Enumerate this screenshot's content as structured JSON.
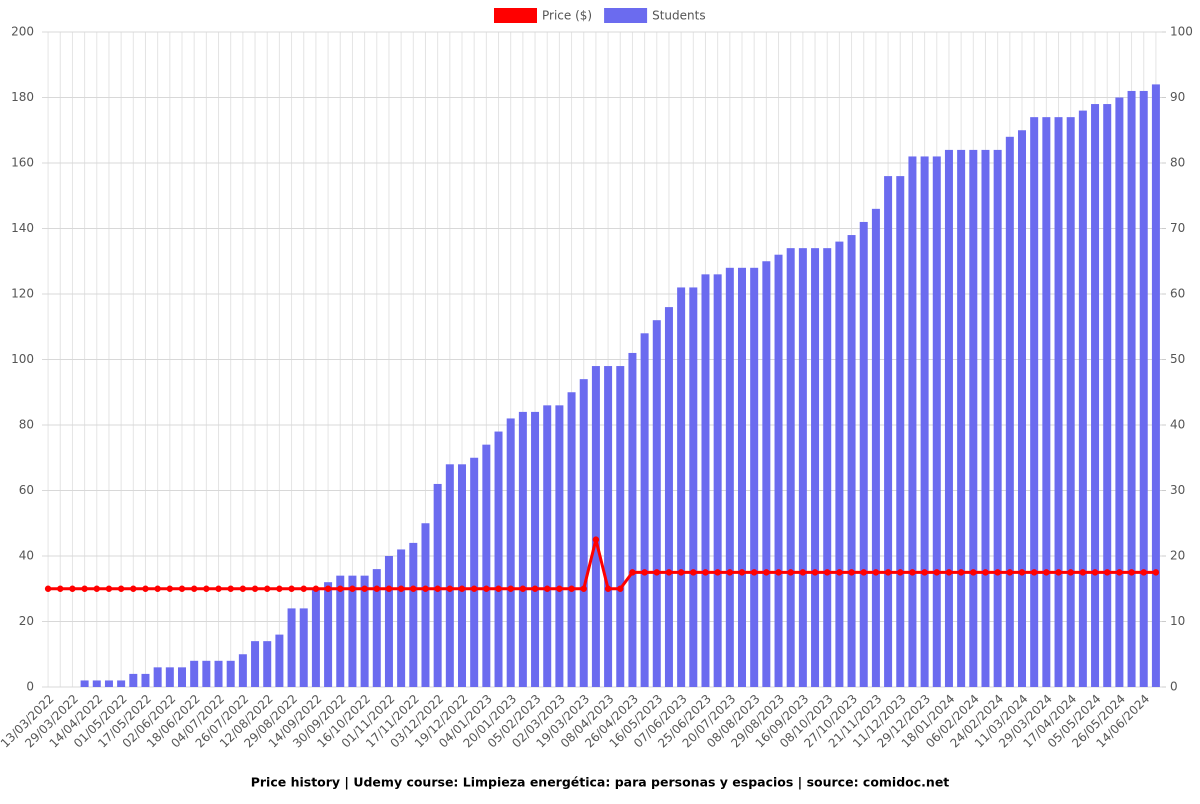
{
  "chart_data": {
    "type": "bar_line",
    "title": "Price history | Udemy course: Limpieza energética: para personas y espacios | source: comidoc.net",
    "categories": [
      "13/03/2022",
      null,
      "29/03/2022",
      null,
      "14/04/2022",
      null,
      "01/05/2022",
      null,
      "17/05/2022",
      null,
      "02/06/2022",
      null,
      "18/06/2022",
      null,
      "04/07/2022",
      null,
      "26/07/2022",
      null,
      "12/08/2022",
      null,
      "29/08/2022",
      null,
      "14/09/2022",
      null,
      "30/09/2022",
      null,
      "16/10/2022",
      null,
      "01/11/2022",
      null,
      "17/11/2022",
      null,
      "03/12/2022",
      null,
      "19/12/2022",
      null,
      "04/01/2023",
      null,
      "20/01/2023",
      null,
      "05/02/2023",
      null,
      "02/03/2023",
      null,
      "19/03/2023",
      null,
      "08/04/2023",
      null,
      "26/04/2023",
      null,
      "16/05/2023",
      null,
      "07/06/2023",
      null,
      "25/06/2023",
      null,
      "20/07/2023",
      null,
      "08/08/2023",
      null,
      "29/08/2023",
      null,
      "16/09/2023",
      null,
      "08/10/2023",
      null,
      "27/10/2023",
      null,
      "21/11/2023",
      null,
      "11/12/2023",
      null,
      "29/12/2023",
      null,
      "18/01/2024",
      null,
      "06/02/2024",
      null,
      "24/02/2024",
      null,
      "11/03/2024",
      null,
      "29/03/2024",
      null,
      "17/04/2024",
      null,
      "05/05/2024",
      null,
      "26/05/2024",
      null,
      "14/06/2024",
      null
    ],
    "series": [
      {
        "name": "Price ($)",
        "type": "line",
        "color": "#ff0000",
        "values": [
          30,
          30,
          30,
          30,
          30,
          30,
          30,
          30,
          30,
          30,
          30,
          30,
          30,
          30,
          30,
          30,
          30,
          30,
          30,
          30,
          30,
          30,
          30,
          30,
          30,
          30,
          30,
          30,
          30,
          30,
          30,
          30,
          30,
          30,
          30,
          30,
          30,
          30,
          30,
          30,
          30,
          30,
          30,
          30,
          30,
          45,
          30,
          30,
          35,
          35,
          35,
          35,
          35,
          35,
          35,
          35,
          35,
          35,
          35,
          35,
          35,
          35,
          35,
          35,
          35,
          35,
          35,
          35,
          35,
          35,
          35,
          35,
          35,
          35,
          35,
          35,
          35,
          35,
          35,
          35,
          35,
          35,
          35,
          35,
          35,
          35,
          35,
          35,
          35,
          35,
          35,
          35
        ]
      },
      {
        "name": "Students",
        "type": "bar",
        "axis": "y2",
        "color": "#6b6bef",
        "values": [
          0,
          0,
          0,
          1,
          1,
          1,
          1,
          2,
          2,
          3,
          3,
          3,
          4,
          4,
          4,
          4,
          5,
          7,
          7,
          8,
          12,
          12,
          15,
          16,
          17,
          17,
          17,
          18,
          20,
          21,
          22,
          25,
          31,
          34,
          34,
          35,
          37,
          39,
          41,
          42,
          42,
          43,
          43,
          45,
          47,
          49,
          49,
          49,
          51,
          54,
          56,
          58,
          61,
          61,
          63,
          63,
          64,
          64,
          64,
          65,
          66,
          67,
          67,
          67,
          67,
          68,
          69,
          71,
          73,
          78,
          78,
          81,
          81,
          81,
          82,
          82,
          82,
          82,
          82,
          84,
          85,
          87,
          87,
          87,
          87,
          88,
          89,
          89,
          90,
          91,
          91,
          92
        ]
      }
    ],
    "ylim": [
      0,
      200
    ],
    "yticks": [
      0,
      20,
      40,
      60,
      80,
      100,
      120,
      140,
      160,
      180,
      200
    ],
    "y2lim": [
      0,
      100
    ],
    "y2ticks": [
      0,
      10,
      20,
      30,
      40,
      50,
      60,
      70,
      80,
      90,
      100
    ],
    "grid": true,
    "legend": "top"
  }
}
